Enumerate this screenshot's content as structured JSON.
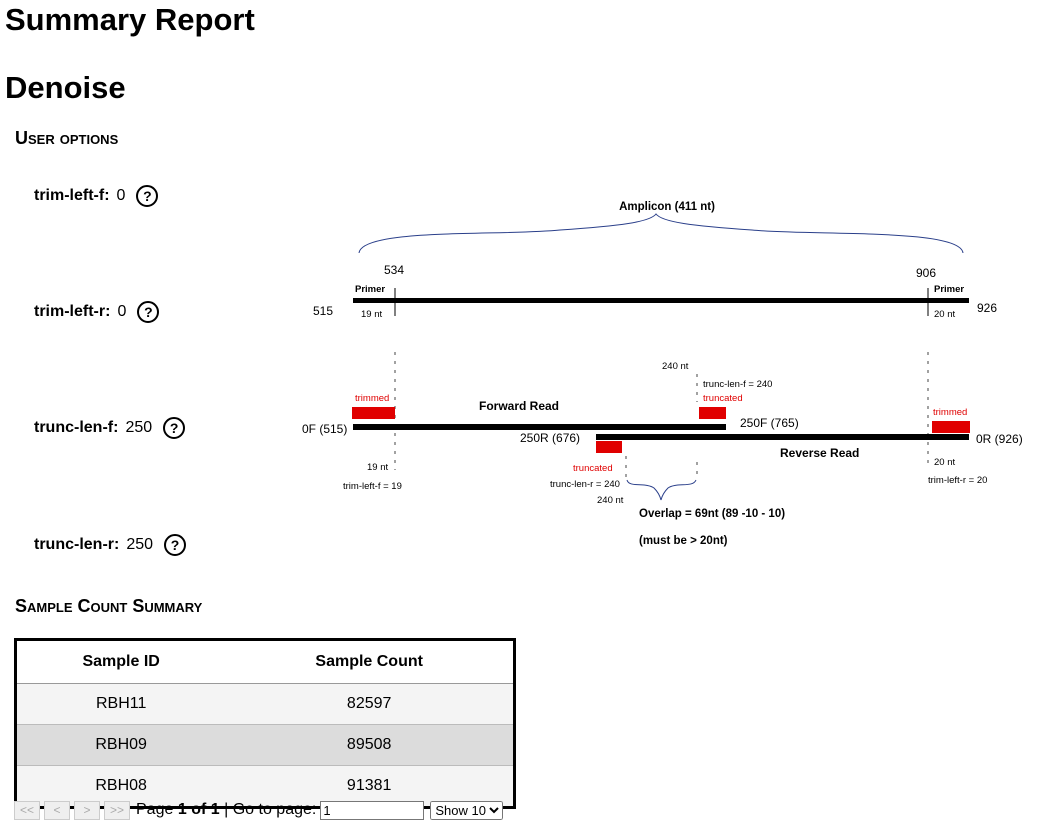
{
  "header": {
    "title": "Summary Report",
    "subtitle": "Denoise"
  },
  "user_options": {
    "heading": "User options",
    "items": [
      {
        "label": "trim-left-f:",
        "value": "0"
      },
      {
        "label": "trim-left-r:",
        "value": "0"
      },
      {
        "label": "trunc-len-f:",
        "value": "250"
      },
      {
        "label": "trunc-len-r:",
        "value": "250"
      }
    ],
    "help_glyph": "?"
  },
  "diagram": {
    "amplicon": "Amplicon (411 nt)",
    "pos_534": "534",
    "pos_906": "906",
    "pos_515": "515",
    "pos_926": "926",
    "primer_left": "Primer",
    "primer_right": "Primer",
    "primer_left_len": "19 nt",
    "primer_right_len": "20 nt",
    "trunc_f_240": "240 nt",
    "trunc_len_f_eq": "trunc-len-f = 240",
    "truncated_f": "truncated",
    "trimmed_left": "trimmed",
    "trimmed_right": "trimmed",
    "forward_read": "Forward Read",
    "zero_f": "0F (515)",
    "f250": "250F (765)",
    "r250": "250R (676)",
    "zero_r": "0R (926)",
    "reverse_read": "Reverse Read",
    "nt19": "19 nt",
    "trim_left_f_eq": "trim-left-f = 19",
    "truncated_r": "truncated",
    "trunc_len_r_eq": "trunc-len-r = 240",
    "trunc_r_240": "240 nt",
    "nt20": "20 nt",
    "trim_left_r_eq": "trim-left-r = 20",
    "overlap": "Overlap = 69nt (89 -10 - 10)",
    "must_be": "(must be > 20nt)",
    "colors": {
      "trim": "#e00000",
      "read": "#000000",
      "brace": "#2a3f8a"
    }
  },
  "sample_count": {
    "heading": "Sample Count Summary",
    "columns": [
      "Sample ID",
      "Sample Count"
    ],
    "rows": [
      [
        "RBH11",
        "82597"
      ],
      [
        "RBH09",
        "89508"
      ],
      [
        "RBH08",
        "91381"
      ]
    ]
  },
  "pager": {
    "first": "<<",
    "prev": "<",
    "next": ">",
    "last": ">>",
    "page_word": "Page",
    "page_current": "1",
    "of_word": "of",
    "page_total": "1",
    "goto": "| Go to page:",
    "goto_value": "1",
    "show_option": "Show 10"
  }
}
